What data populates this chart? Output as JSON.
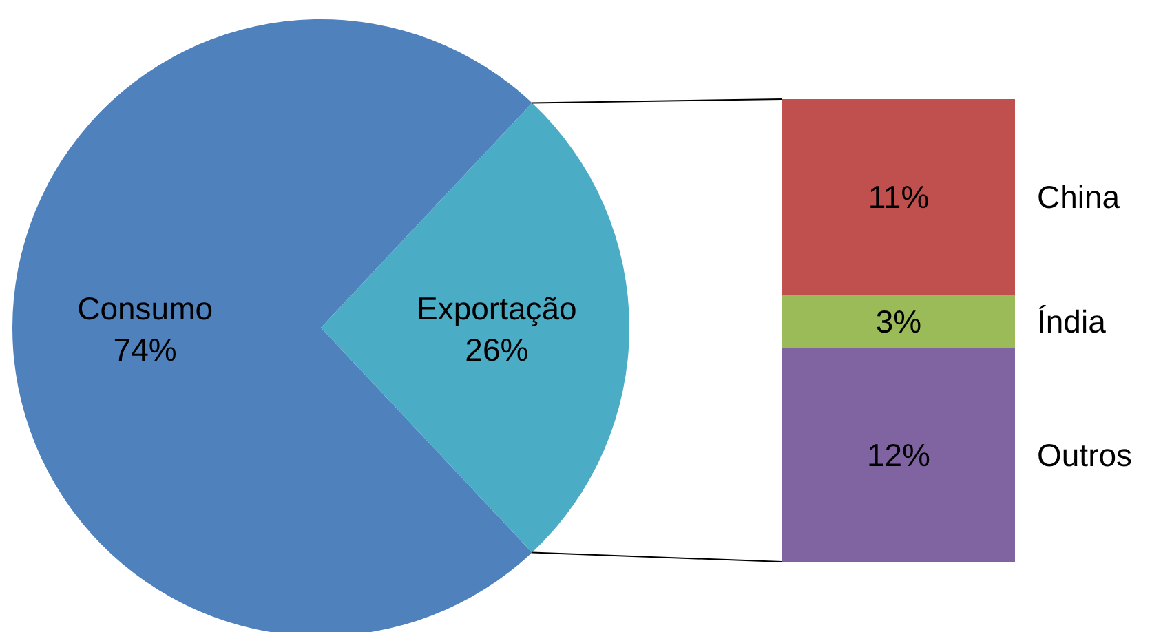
{
  "chart_data": [
    {
      "type": "pie",
      "categories": [
        "Consumo",
        "Exportação"
      ],
      "values": [
        74,
        26
      ],
      "colors": [
        "#4f81bd",
        "#4bacc6"
      ],
      "value_labels": [
        "74%",
        "26%"
      ]
    },
    {
      "type": "bar",
      "stacked": true,
      "categories": [
        null
      ],
      "series": [
        {
          "name": "Outros",
          "color": "#8064a2",
          "values": [
            12
          ],
          "value_labels": [
            "12%"
          ]
        },
        {
          "name": "Índia",
          "color": "#9bbb59",
          "values": [
            3
          ],
          "value_labels": [
            "3%"
          ]
        },
        {
          "name": "China",
          "color": "#c0504d",
          "values": [
            11
          ],
          "value_labels": [
            "11%"
          ]
        }
      ]
    }
  ]
}
